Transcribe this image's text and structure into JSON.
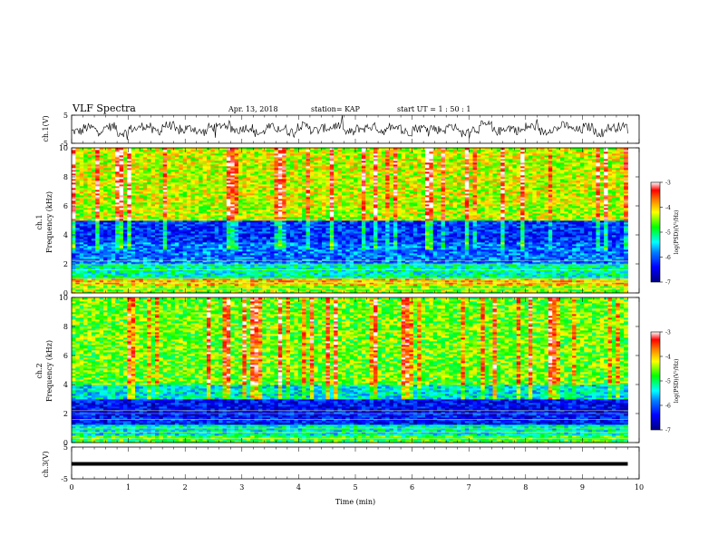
{
  "header": {
    "title": "VLF Spectra",
    "date": "Apr. 13, 2018",
    "station": "station= KAP",
    "start": "start  UT =  1 : 50 : 1"
  },
  "chart_data": [
    {
      "type": "line",
      "panel": "ch1-waveform",
      "ylabel": "ch.1(V)",
      "ylim": [
        -5,
        5
      ],
      "yticks": [
        "5",
        "-5"
      ],
      "xlim": [
        0,
        10
      ],
      "color": "#000000",
      "series_note": "noisy waveform roughly oscillating between about -3 and +3 V",
      "samples": [
        -1.2,
        0.8,
        -0.5,
        1.5,
        -2.0,
        0.3,
        1.8,
        -1.0,
        2.2,
        -0.8,
        0.5,
        -1.6,
        1.2,
        2.5,
        -0.4,
        0.9,
        -2.2,
        1.1,
        0.2,
        -1.3,
        1.9,
        -0.6,
        0.7,
        2.0,
        -1.8,
        0.4,
        1.4,
        -0.9,
        2.3,
        -1.5,
        0.6,
        1.0,
        -0.3,
        1.7,
        -2.1,
        0.1,
        2.4,
        -1.1,
        0.8,
        -0.7,
        1.6,
        -1.4,
        0.3,
        2.1,
        -0.5,
        1.3,
        -1.9,
        0.9,
        1.5,
        -1.0
      ]
    },
    {
      "type": "heatmap",
      "panel": "ch1-spectrogram",
      "ylabel": "ch.1\nFrequency  (kHz)",
      "ylabel_line1": "ch.1",
      "ylabel_line2": "Frequency  (kHz)",
      "yticks": [
        "0",
        "2",
        "4",
        "6",
        "8",
        "10"
      ],
      "ylim": [
        0,
        10
      ],
      "xlim": [
        0,
        10
      ],
      "colorbar": {
        "label": "log(PSD)(V²/Hz)",
        "ticks": [
          "-3",
          "-4",
          "-5",
          "-6",
          "-7"
        ],
        "range": [
          -7,
          -3
        ]
      },
      "bands": [
        {
          "from": 0,
          "to": 0.5,
          "level": -4.5
        },
        {
          "from": 0.5,
          "to": 1.0,
          "level": -4.0
        },
        {
          "from": 1.0,
          "to": 2.0,
          "level": -5.2
        },
        {
          "from": 2.0,
          "to": 3.5,
          "level": -5.9
        },
        {
          "from": 3.5,
          "to": 5.0,
          "level": -6.2
        },
        {
          "from": 5.0,
          "to": 6.0,
          "level": -4.4
        },
        {
          "from": 6.0,
          "to": 10.0,
          "level": -4.3
        }
      ]
    },
    {
      "type": "heatmap",
      "panel": "ch2-spectrogram",
      "ylabel": "ch.2\nFrequency  (kHz)",
      "ylabel_line1": "ch.2",
      "ylabel_line2": "Frequency  (kHz)",
      "yticks": [
        "0",
        "2",
        "4",
        "6",
        "8",
        "10"
      ],
      "ylim": [
        0,
        10
      ],
      "xlim": [
        0,
        10
      ],
      "colorbar": {
        "label": "log(PSD)(V²/Hz)",
        "ticks": [
          "-3",
          "-4",
          "-5",
          "-6",
          "-7"
        ],
        "range": [
          -7,
          -3
        ]
      },
      "bands": [
        {
          "from": 0,
          "to": 0.5,
          "level": -4.8
        },
        {
          "from": 0.5,
          "to": 1.2,
          "level": -5.3
        },
        {
          "from": 1.2,
          "to": 2.0,
          "level": -6.3
        },
        {
          "from": 2.0,
          "to": 3.0,
          "level": -6.4
        },
        {
          "from": 3.0,
          "to": 4.0,
          "level": -5.4
        },
        {
          "from": 4.0,
          "to": 10.0,
          "level": -4.6
        }
      ]
    },
    {
      "type": "line",
      "panel": "ch3-waveform",
      "ylabel": "ch.3(V)",
      "ylim": [
        -5,
        5
      ],
      "yticks": [
        "5",
        "-5"
      ],
      "xlim": [
        0,
        10
      ],
      "constant_value": 0,
      "xlabel": "Time  (min)",
      "xticks": [
        "0",
        "1",
        "2",
        "3",
        "4",
        "5",
        "6",
        "7",
        "8",
        "9",
        "10"
      ]
    }
  ],
  "colors": {
    "colormap": [
      "#000080",
      "#0000ff",
      "#0080ff",
      "#00ffff",
      "#00ff80",
      "#00ff00",
      "#ffff00",
      "#ff8000",
      "#ff0000",
      "#ffffff"
    ]
  }
}
